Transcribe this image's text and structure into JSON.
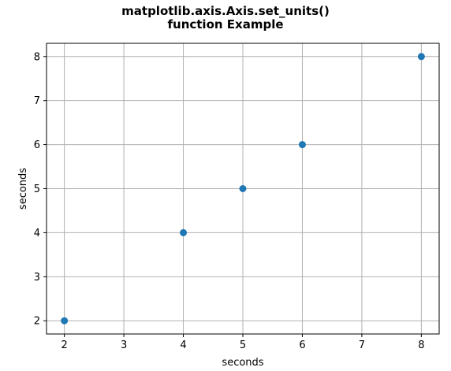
{
  "chart_data": {
    "type": "scatter",
    "title_lines": [
      "matplotlib.axis.Axis.set_units()",
      "function Example"
    ],
    "xlabel": "seconds",
    "ylabel": "seconds",
    "x": [
      2,
      4,
      5,
      6,
      8
    ],
    "y": [
      2,
      4,
      5,
      6,
      8
    ],
    "xlim": [
      1.7,
      8.3
    ],
    "ylim": [
      1.7,
      8.3
    ],
    "xticks": [
      2,
      3,
      4,
      5,
      6,
      7,
      8
    ],
    "yticks": [
      2,
      3,
      4,
      5,
      6,
      7,
      8
    ],
    "grid": true,
    "marker_color": "#1f77b4",
    "grid_color": "#b0b0b0"
  }
}
